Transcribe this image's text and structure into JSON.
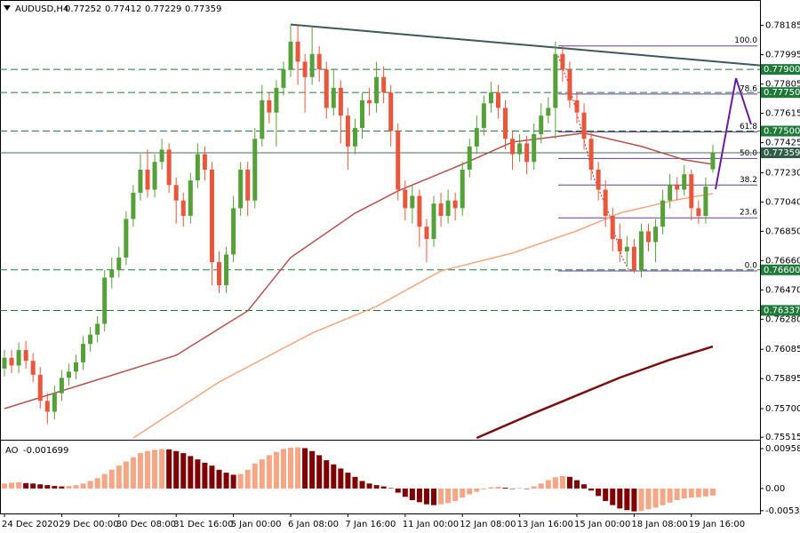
{
  "chart_data": {
    "type": "candlestick",
    "symbol": "AUDUSD,H4",
    "up_color": "#56a03a",
    "down_color": "#e8573c",
    "ylim": [
      0.7551,
      0.7835
    ],
    "yticks": [
      0.78185,
      0.77995,
      0.77805,
      0.77615,
      0.77425,
      {
        "value": 0.7723,
        "label": "0.77230"
      },
      {
        "value": 0.7704,
        "label": "0.77040"
      },
      {
        "value": 0.7685,
        "label": "0.76850"
      },
      {
        "value": 0.7666,
        "label": "0.76660"
      },
      {
        "value": 0.7647,
        "label": "0.76470"
      },
      {
        "value": 0.7628,
        "label": "0.76280"
      },
      0.76085,
      0.75895,
      {
        "value": 0.757,
        "label": "0.75700"
      },
      0.75515
    ],
    "time_labels": [
      "24 Dec 2020",
      "29 Dec 00:00",
      "30 Dec 08:00",
      "31 Dec 16:00",
      "5 Jan 00:00",
      "6 Jan 08:00",
      "7 Jan 16:00",
      "11 Jan 00:00",
      "12 Jan 08:00",
      "13 Jan 16:00",
      "15 Jan 00:00",
      "18 Jan 08:00",
      "19 Jan 16:00"
    ],
    "ohlc": [
      [
        0.7596,
        0.7608,
        0.7591,
        0.7603
      ],
      [
        0.7603,
        0.7608,
        0.7593,
        0.7598
      ],
      [
        0.7598,
        0.7613,
        0.7593,
        0.7608
      ],
      [
        0.7608,
        0.7614,
        0.7596,
        0.7601
      ],
      [
        0.7601,
        0.7606,
        0.7587,
        0.7592
      ],
      [
        0.7592,
        0.7597,
        0.757,
        0.7575
      ],
      [
        0.7575,
        0.758,
        0.756,
        0.7568
      ],
      [
        0.7568,
        0.7585,
        0.7563,
        0.758
      ],
      [
        0.758,
        0.7595,
        0.7575,
        0.759
      ],
      [
        0.759,
        0.7599,
        0.7585,
        0.7594
      ],
      [
        0.7594,
        0.7605,
        0.7589,
        0.76
      ],
      [
        0.76,
        0.7617,
        0.7595,
        0.7612
      ],
      [
        0.7612,
        0.7623,
        0.7607,
        0.7618
      ],
      [
        0.7618,
        0.763,
        0.7613,
        0.7625
      ],
      [
        0.7625,
        0.766,
        0.762,
        0.7655
      ],
      [
        0.7655,
        0.7668,
        0.7648,
        0.766
      ],
      [
        0.766,
        0.7675,
        0.7655,
        0.7668
      ],
      [
        0.7668,
        0.7698,
        0.7663,
        0.7693
      ],
      [
        0.7693,
        0.7715,
        0.7688,
        0.771
      ],
      [
        0.771,
        0.7735,
        0.7705,
        0.7725
      ],
      [
        0.7725,
        0.7738,
        0.7707,
        0.7712
      ],
      [
        0.7712,
        0.7735,
        0.7707,
        0.773
      ],
      [
        0.773,
        0.7745,
        0.7725,
        0.7738
      ],
      [
        0.7738,
        0.7742,
        0.771,
        0.7715
      ],
      [
        0.7715,
        0.772,
        0.769,
        0.7705
      ],
      [
        0.7705,
        0.771,
        0.7688,
        0.7695
      ],
      [
        0.7695,
        0.7723,
        0.769,
        0.7718
      ],
      [
        0.7718,
        0.7742,
        0.7713,
        0.7735
      ],
      [
        0.7735,
        0.774,
        0.7718,
        0.7725
      ],
      [
        0.7725,
        0.773,
        0.765,
        0.7665
      ],
      [
        0.7665,
        0.7672,
        0.7645,
        0.765
      ],
      [
        0.765,
        0.7675,
        0.7645,
        0.767
      ],
      [
        0.767,
        0.7708,
        0.7665,
        0.77
      ],
      [
        0.77,
        0.773,
        0.7695,
        0.7725
      ],
      [
        0.7725,
        0.773,
        0.7695,
        0.7705
      ],
      [
        0.7705,
        0.7752,
        0.77,
        0.7745
      ],
      [
        0.7745,
        0.778,
        0.774,
        0.777
      ],
      [
        0.777,
        0.7775,
        0.7755,
        0.7762
      ],
      [
        0.7762,
        0.7783,
        0.774,
        0.7778
      ],
      [
        0.7778,
        0.7795,
        0.7773,
        0.779
      ],
      [
        0.779,
        0.7819,
        0.7785,
        0.7808
      ],
      [
        0.7808,
        0.7818,
        0.778,
        0.7795
      ],
      [
        0.7795,
        0.78,
        0.7762,
        0.7785
      ],
      [
        0.7785,
        0.7818,
        0.778,
        0.78
      ],
      [
        0.78,
        0.7805,
        0.7782,
        0.779
      ],
      [
        0.779,
        0.7795,
        0.7758,
        0.7765
      ],
      [
        0.7765,
        0.779,
        0.776,
        0.7778
      ],
      [
        0.7778,
        0.7783,
        0.7742,
        0.776
      ],
      [
        0.776,
        0.7765,
        0.7725,
        0.774
      ],
      [
        0.774,
        0.7758,
        0.7735,
        0.7752
      ],
      [
        0.7752,
        0.7775,
        0.7745,
        0.777
      ],
      [
        0.777,
        0.7778,
        0.776,
        0.7768
      ],
      [
        0.7768,
        0.7795,
        0.7762,
        0.7785
      ],
      [
        0.7785,
        0.7792,
        0.7768,
        0.7775
      ],
      [
        0.7775,
        0.778,
        0.774,
        0.775
      ],
      [
        0.775,
        0.7755,
        0.7705,
        0.7712
      ],
      [
        0.7712,
        0.7718,
        0.7692,
        0.77
      ],
      [
        0.77,
        0.7715,
        0.769,
        0.7708
      ],
      [
        0.7708,
        0.7712,
        0.7675,
        0.7688
      ],
      [
        0.7688,
        0.7693,
        0.7665,
        0.768
      ],
      [
        0.768,
        0.7708,
        0.7675,
        0.7703
      ],
      [
        0.7703,
        0.771,
        0.7688,
        0.7695
      ],
      [
        0.7695,
        0.7712,
        0.769,
        0.7705
      ],
      [
        0.7705,
        0.771,
        0.7692,
        0.77
      ],
      [
        0.77,
        0.773,
        0.7695,
        0.7725
      ],
      [
        0.7725,
        0.7745,
        0.772,
        0.774
      ],
      [
        0.774,
        0.776,
        0.7735,
        0.7752
      ],
      [
        0.7752,
        0.7773,
        0.7747,
        0.7768
      ],
      [
        0.7768,
        0.7782,
        0.7762,
        0.7775
      ],
      [
        0.7775,
        0.778,
        0.7758,
        0.7765
      ],
      [
        0.7765,
        0.777,
        0.7738,
        0.7745
      ],
      [
        0.7745,
        0.775,
        0.7725,
        0.7735
      ],
      [
        0.7735,
        0.7748,
        0.773,
        0.7742
      ],
      [
        0.7742,
        0.7747,
        0.7722,
        0.773
      ],
      [
        0.773,
        0.7755,
        0.7725,
        0.7748
      ],
      [
        0.7748,
        0.7768,
        0.7742,
        0.776
      ],
      [
        0.776,
        0.7772,
        0.7755,
        0.7765
      ],
      [
        0.7765,
        0.7808,
        0.7745,
        0.78
      ],
      [
        0.78,
        0.7805,
        0.7782,
        0.779
      ],
      [
        0.779,
        0.7795,
        0.7765,
        0.777
      ],
      [
        0.777,
        0.7775,
        0.7755,
        0.7762
      ],
      [
        0.7762,
        0.7768,
        0.7738,
        0.7745
      ],
      [
        0.7745,
        0.775,
        0.7718,
        0.7725
      ],
      [
        0.7725,
        0.773,
        0.7705,
        0.7712
      ],
      [
        0.7712,
        0.7718,
        0.7688,
        0.7695
      ],
      [
        0.7695,
        0.77,
        0.7672,
        0.768
      ],
      [
        0.768,
        0.769,
        0.7665,
        0.7672
      ],
      [
        0.7672,
        0.7682,
        0.7662,
        0.7675
      ],
      [
        0.7675,
        0.768,
        0.7658,
        0.766
      ],
      [
        0.766,
        0.769,
        0.7655,
        0.7685
      ],
      [
        0.7685,
        0.769,
        0.7672,
        0.7678
      ],
      [
        0.7678,
        0.7693,
        0.7665,
        0.7688
      ],
      [
        0.7688,
        0.7712,
        0.7683,
        0.7705
      ],
      [
        0.7705,
        0.7722,
        0.77,
        0.7715
      ],
      [
        0.7715,
        0.772,
        0.7705,
        0.7712
      ],
      [
        0.7712,
        0.7728,
        0.7708,
        0.7722
      ],
      [
        0.7722,
        0.7725,
        0.7692,
        0.77
      ],
      [
        0.77,
        0.7705,
        0.769,
        0.7695
      ],
      [
        0.7695,
        0.772,
        0.769,
        0.7714
      ],
      [
        0.77252,
        0.77412,
        0.77229,
        0.77359
      ]
    ],
    "moving_averages": [
      {
        "color": "#b5534c",
        "x": [
          0,
          12,
          24,
          34,
          40,
          49,
          55,
          64,
          71,
          76,
          81,
          89,
          95,
          99
        ],
        "values": [
          0.757,
          0.75873,
          0.76046,
          0.76334,
          0.7668,
          0.76968,
          0.77112,
          0.77285,
          0.77429,
          0.77458,
          0.77487,
          0.77401,
          0.77314,
          0.77285
        ]
      },
      {
        "color": "#f5a77f",
        "x": [
          18,
          30,
          43,
          52,
          61,
          71,
          80,
          86,
          94,
          99
        ],
        "values": [
          0.7551,
          0.75873,
          0.7619,
          0.76363,
          0.76593,
          0.76709,
          0.76853,
          0.76968,
          0.77055,
          0.77095
        ]
      },
      {
        "color": "#7a0f0f",
        "x": [
          66,
          74,
          80,
          86,
          93,
          99
        ],
        "values": [
          0.7551,
          0.75671,
          0.75786,
          0.75901,
          0.76017,
          0.76103
        ]
      }
    ],
    "trendline": {
      "color": "#3d5a5a",
      "x": [
        40,
        105.6
      ],
      "values": [
        0.78191,
        0.77926
      ]
    },
    "levels": [
      {
        "value": 0.779,
        "label": "0.77900"
      },
      {
        "value": 0.7775,
        "label": "0.77750"
      },
      {
        "value": 0.775,
        "label": "0.77500"
      },
      {
        "value": 0.766,
        "label": "0.76600"
      },
      {
        "value": 0.76337,
        "label": "0.76337"
      }
    ],
    "level_color": "#1f7a3a",
    "current": {
      "value": 0.77359,
      "label": "0.77359"
    },
    "fib": {
      "high": 0.78052,
      "low": 0.76593,
      "color": "#6a3d9a",
      "levels": [
        {
          "value": 100,
          "label": "100.0"
        },
        78.6,
        61.8,
        {
          "value": 50,
          "label": "50.0"
        },
        38.2,
        23.6,
        {
          "value": 0,
          "label": "0.0"
        }
      ]
    },
    "ao_name": "AO",
    "ao_up_color": "#f5a684",
    "ao_down_color": "#7f0000",
    "ao_ylim": [
      -0.006,
      0.0113
    ],
    "ao_ticks": [
      0.009588,
      {
        "value": 0,
        "label": "0.00"
      },
      -0.005326
    ],
    "ao": [
      0.0012,
      0.0014,
      0.0015,
      0.0013,
      0.0012,
      0.001,
      0.0008,
      0.0006,
      0.0005,
      0.0006,
      0.0008,
      0.0012,
      0.0018,
      0.0025,
      0.0035,
      0.0045,
      0.0055,
      0.0065,
      0.0075,
      0.0085,
      0.009,
      0.0093,
      0.0095,
      0.0094,
      0.009,
      0.0085,
      0.0078,
      0.007,
      0.0062,
      0.0055,
      0.0045,
      0.0038,
      0.0033,
      0.0035,
      0.0045,
      0.006,
      0.007,
      0.008,
      0.0088,
      0.0095,
      0.0098,
      0.0099,
      0.0097,
      0.009,
      0.008,
      0.0068,
      0.0058,
      0.0048,
      0.0038,
      0.0028,
      0.0018,
      0.0012,
      0.0008,
      0.0005,
      0.0001,
      -0.001,
      -0.002,
      -0.0028,
      -0.0033,
      -0.0038,
      -0.004,
      -0.0038,
      -0.0035,
      -0.003,
      -0.0022,
      -0.0014,
      -0.0008,
      -0.0002,
      0.0003,
      0.0004,
      0.0002,
      -0.0001,
      0.0001,
      0,
      0.0005,
      0.0012,
      0.002,
      0.0027,
      0.003,
      0.0028,
      0.002,
      0.001,
      -0.0005,
      -0.0018,
      -0.003,
      -0.004,
      -0.0048,
      -0.0052,
      -0.0055,
      -0.0054,
      -0.005,
      -0.0046,
      -0.004,
      -0.0034,
      -0.0028,
      -0.0024,
      -0.0022,
      -0.0021,
      -0.0019,
      -0.001699
    ]
  }
}
